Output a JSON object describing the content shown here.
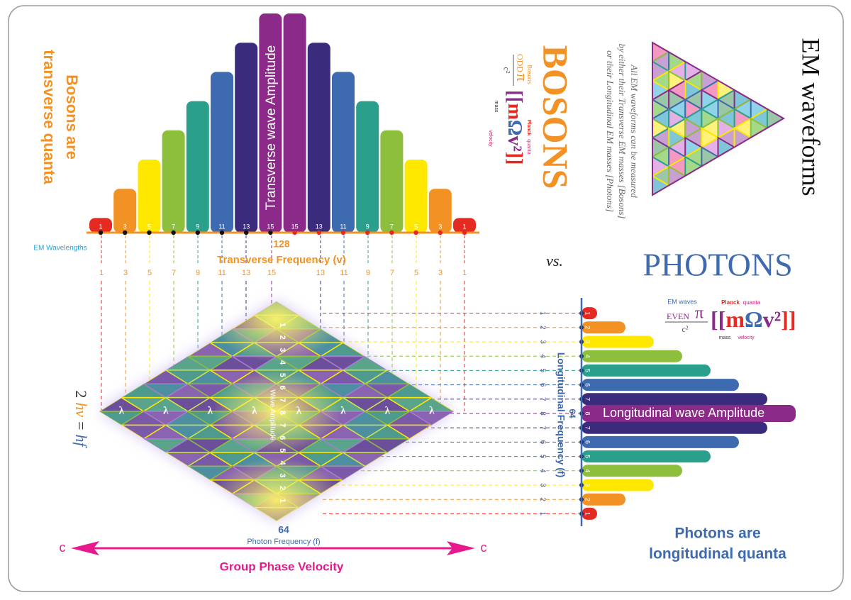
{
  "bosons_caption": [
    "Bosons are",
    "transverse quanta"
  ],
  "transverse": {
    "amplitudes": [
      1,
      3,
      5,
      7,
      9,
      11,
      13,
      15,
      15,
      13,
      11,
      9,
      7,
      5,
      3,
      1
    ],
    "amplitude_label": "Transverse wave Amplitude",
    "total": "128",
    "frequency_label": "Transverse Frequency (v)",
    "wavelengths_label": "EM Wavelengths",
    "wavelengths": [
      1,
      3,
      5,
      7,
      9,
      11,
      13,
      15,
      13,
      11,
      9,
      7,
      5,
      3,
      1
    ]
  },
  "palette": [
    "#e42a21",
    "#f39224",
    "#ffe800",
    "#8dbe3c",
    "#2a9f8c",
    "#3e6bb0",
    "#3a2b7c",
    "#8b2a88"
  ],
  "bosons": {
    "title": "BOSONS",
    "group": "Bosons",
    "numerator": "ODD",
    "pi": "π",
    "denominator": "c²",
    "formula": [
      "[[",
      "m",
      "Ω",
      "v²",
      "]]"
    ],
    "planck": "Planck",
    "quanta": "quanta",
    "mass": "mass",
    "velocity": "velocity"
  },
  "em_waveforms": {
    "title": "EM waveforms",
    "description": [
      "All EM waveforms can be measured",
      "by either their Transverse EM masses [Bosons]",
      "or their Longitudinal EM masses [Photons]"
    ]
  },
  "vs": "vs.",
  "photons": {
    "title": "PHOTONS",
    "group": "EM waves",
    "numerator": "EVEN",
    "pi": "π",
    "denominator": "c²",
    "formula": [
      "[[",
      "m",
      "Ω",
      "v²",
      "]]"
    ],
    "planck": "Planck",
    "quanta": "quanta",
    "mass": "mass",
    "velocity": "velocity"
  },
  "diamond": {
    "wavelength_symbol": "λ",
    "amplitude_label": "Wave Amplitude",
    "relation": [
      "2",
      "hv",
      "=",
      "hf"
    ],
    "total": "64",
    "frequency_label": "Photon Frequency (f)"
  },
  "velocity": {
    "left": "c",
    "right": "c",
    "label": "Group Phase Velocity"
  },
  "longitudinal": {
    "amplitudes": [
      1,
      2,
      3,
      4,
      5,
      6,
      7,
      8,
      7,
      6,
      5,
      4,
      3,
      2,
      1
    ],
    "amplitude_label": "Longitudinal  wave Amplitude",
    "total": "64",
    "frequency_label": "Longitudinal Frequency (f)"
  },
  "photons_caption": [
    "Photons are",
    "longitudinal quanta"
  ]
}
